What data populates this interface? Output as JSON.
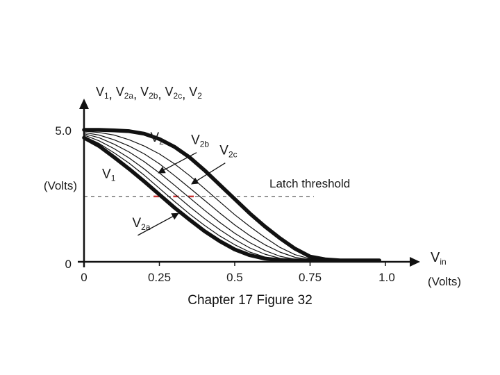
{
  "chart_data": {
    "type": "line",
    "title": "",
    "ylabel_parts": [
      {
        "base": "V",
        "sub": "1",
        "sep": ", "
      },
      {
        "base": "V",
        "sub": "2a",
        "sep": ", "
      },
      {
        "base": "V",
        "sub": "2b",
        "sep": ", "
      },
      {
        "base": "V",
        "sub": "2c",
        "sep": ", "
      },
      {
        "base": "V",
        "sub": "2",
        "sep": ""
      }
    ],
    "yunit": "(Volts)",
    "xlabel": {
      "base": "V",
      "sub": "in"
    },
    "xunit": "(Volts)",
    "xlim": [
      0,
      1.0
    ],
    "ylim": [
      0,
      5.0
    ],
    "xticks": [
      "0",
      "0.25",
      "0.5",
      "0.75",
      "1.0"
    ],
    "yticks": [
      "0",
      "5.0"
    ],
    "threshold": {
      "label": "Latch threshold",
      "value": 2.45
    },
    "series": [
      {
        "name": "V2",
        "emphasis": true,
        "x": [
          0,
          0.05,
          0.1,
          0.15,
          0.2,
          0.25,
          0.3,
          0.35,
          0.4,
          0.45,
          0.5,
          0.55,
          0.6,
          0.65,
          0.7,
          0.75,
          0.8,
          0.85,
          0.9,
          0.95,
          0.98
        ],
        "y": [
          5.0,
          5.0,
          4.98,
          4.95,
          4.85,
          4.65,
          4.35,
          3.95,
          3.45,
          2.9,
          2.35,
          1.8,
          1.3,
          0.85,
          0.45,
          0.15,
          0.04,
          0.0,
          0.0,
          0.0,
          0.0
        ]
      },
      {
        "name": "",
        "emphasis": false,
        "x": [
          0,
          0.05,
          0.1,
          0.15,
          0.2,
          0.25,
          0.3,
          0.35,
          0.4,
          0.45,
          0.5,
          0.55,
          0.6,
          0.65,
          0.7,
          0.75,
          0.8,
          0.85,
          0.9
        ],
        "y": [
          4.95,
          4.9,
          4.8,
          4.62,
          4.38,
          4.08,
          3.7,
          3.25,
          2.75,
          2.25,
          1.75,
          1.3,
          0.88,
          0.5,
          0.22,
          0.06,
          0.0,
          0.0,
          0.0
        ]
      },
      {
        "name": "",
        "emphasis": false,
        "x": [
          0,
          0.05,
          0.1,
          0.15,
          0.2,
          0.25,
          0.3,
          0.35,
          0.4,
          0.45,
          0.5,
          0.55,
          0.6,
          0.65,
          0.7,
          0.75,
          0.8,
          0.85,
          0.9
        ],
        "y": [
          4.9,
          4.8,
          4.62,
          4.38,
          4.08,
          3.7,
          3.25,
          2.78,
          2.3,
          1.82,
          1.36,
          0.95,
          0.6,
          0.32,
          0.12,
          0.02,
          0.0,
          0.0,
          0.0
        ]
      },
      {
        "name": "V2c",
        "emphasis": false,
        "x": [
          0,
          0.05,
          0.1,
          0.15,
          0.2,
          0.25,
          0.3,
          0.35,
          0.4,
          0.45,
          0.5,
          0.55,
          0.6,
          0.65,
          0.7,
          0.75,
          0.8,
          0.85,
          0.9
        ],
        "y": [
          4.85,
          4.7,
          4.45,
          4.15,
          3.78,
          3.35,
          2.88,
          2.4,
          1.92,
          1.46,
          1.04,
          0.68,
          0.38,
          0.16,
          0.04,
          0.0,
          0.0,
          0.0,
          0.0
        ]
      },
      {
        "name": "V2b",
        "emphasis": false,
        "x": [
          0,
          0.05,
          0.1,
          0.15,
          0.2,
          0.25,
          0.3,
          0.35,
          0.4,
          0.45,
          0.5,
          0.55,
          0.6,
          0.65,
          0.7,
          0.75,
          0.8,
          0.85,
          0.9
        ],
        "y": [
          4.8,
          4.58,
          4.28,
          3.92,
          3.5,
          3.03,
          2.55,
          2.06,
          1.6,
          1.18,
          0.8,
          0.48,
          0.24,
          0.08,
          0.01,
          0.0,
          0.0,
          0.0,
          0.0
        ]
      },
      {
        "name": "V2a",
        "emphasis": false,
        "x": [
          0,
          0.05,
          0.1,
          0.15,
          0.2,
          0.25,
          0.3,
          0.35,
          0.4,
          0.45,
          0.5,
          0.55,
          0.6,
          0.65,
          0.7,
          0.75,
          0.8,
          0.85,
          0.9
        ],
        "y": [
          4.75,
          4.48,
          4.12,
          3.72,
          3.26,
          2.76,
          2.26,
          1.78,
          1.34,
          0.94,
          0.6,
          0.32,
          0.13,
          0.03,
          0.0,
          0.0,
          0.0,
          0.0,
          0.0
        ]
      },
      {
        "name": "V1",
        "emphasis": true,
        "x": [
          0,
          0.05,
          0.1,
          0.15,
          0.2,
          0.25,
          0.3,
          0.35,
          0.4,
          0.45,
          0.5,
          0.55,
          0.6,
          0.65,
          0.7,
          0.75,
          0.8
        ],
        "y": [
          4.7,
          4.38,
          3.95,
          3.5,
          3.02,
          2.52,
          2.02,
          1.56,
          1.12,
          0.74,
          0.42,
          0.2,
          0.07,
          0.01,
          0.0,
          0.0,
          0.0
        ]
      }
    ],
    "curve_labels": [
      {
        "base": "V",
        "sub": "2",
        "x": 0.22,
        "y": 4.55,
        "target": null
      },
      {
        "base": "V",
        "sub": "2b",
        "x": 0.355,
        "y": 4.45,
        "target": [
          0.25,
          3.37
        ]
      },
      {
        "base": "V",
        "sub": "2c",
        "x": 0.45,
        "y": 4.05,
        "target": [
          0.36,
          2.95
        ]
      },
      {
        "base": "V",
        "sub": "1",
        "x": 0.06,
        "y": 3.15,
        "target": null
      },
      {
        "base": "V",
        "sub": "2a",
        "x": 0.16,
        "y": 1.28,
        "target": [
          0.31,
          1.78
        ]
      }
    ]
  },
  "caption": "Chapter 17 Figure 32"
}
